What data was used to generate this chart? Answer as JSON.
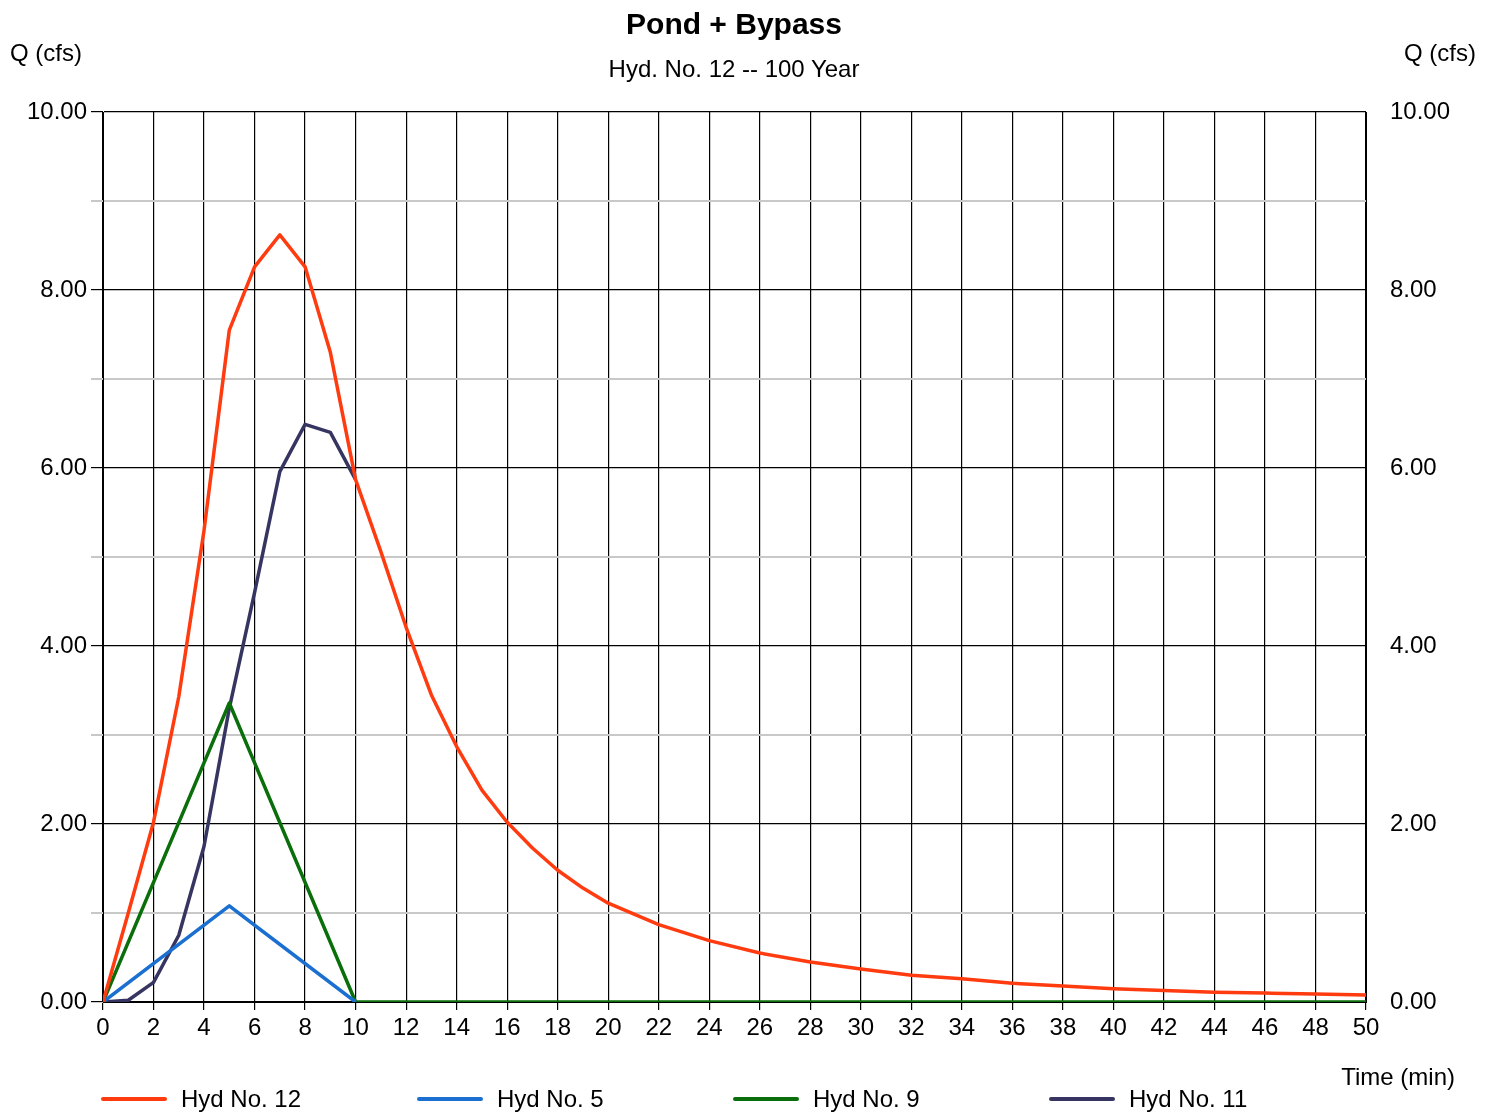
{
  "chart_data": {
    "type": "line",
    "title": "Pond + Bypass",
    "subtitle": "Hyd. No. 12 -- 100 Year",
    "xlabel": "Time (min)",
    "ylabel": "Q (cfs)",
    "y2label": "Q (cfs)",
    "xlim": [
      0,
      50
    ],
    "xticks": [
      0,
      2,
      4,
      6,
      8,
      10,
      12,
      14,
      16,
      18,
      20,
      22,
      24,
      26,
      28,
      30,
      32,
      34,
      36,
      38,
      40,
      42,
      44,
      46,
      48,
      50
    ],
    "ylim": [
      0,
      10
    ],
    "yticks": [
      {
        "value": 0,
        "label": "0.00"
      },
      {
        "value": 1,
        "label": null
      },
      {
        "value": 2,
        "label": "2.00"
      },
      {
        "value": 3,
        "label": null
      },
      {
        "value": 4,
        "label": "4.00"
      },
      {
        "value": 5,
        "label": null
      },
      {
        "value": 6,
        "label": "6.00"
      },
      {
        "value": 7,
        "label": null
      },
      {
        "value": 8,
        "label": "8.00"
      },
      {
        "value": 9,
        "label": null
      },
      {
        "value": 10,
        "label": "10.00"
      }
    ],
    "y2lim": [
      0,
      10
    ],
    "y2ticks": [
      {
        "value": 0,
        "label": "0.00"
      },
      {
        "value": 2,
        "label": "2.00"
      },
      {
        "value": 4,
        "label": "4.00"
      },
      {
        "value": 6,
        "label": "6.00"
      },
      {
        "value": 8,
        "label": "8.00"
      },
      {
        "value": 10,
        "label": "10.00"
      }
    ],
    "grid": true,
    "legend": "bottom",
    "marker": "none",
    "line_style": "solid",
    "series": [
      {
        "name": "Hyd No. 12",
        "color": "#ff3b0f",
        "x": [
          0,
          1,
          2,
          3,
          4,
          5,
          6,
          7,
          8,
          9,
          10,
          11,
          12,
          13,
          14,
          15,
          16,
          17,
          18,
          19,
          20,
          22,
          24,
          26,
          28,
          30,
          32,
          34,
          36,
          38,
          40,
          42,
          44,
          46,
          48,
          50
        ],
        "values": [
          0,
          1.0,
          2.02,
          3.43,
          5.3,
          7.55,
          8.26,
          8.62,
          8.26,
          7.3,
          5.87,
          5.06,
          4.21,
          3.45,
          2.87,
          2.38,
          2.02,
          1.73,
          1.48,
          1.28,
          1.11,
          0.87,
          0.69,
          0.55,
          0.45,
          0.37,
          0.3,
          0.26,
          0.21,
          0.18,
          0.15,
          0.13,
          0.11,
          0.1,
          0.09,
          0.08
        ]
      },
      {
        "name": "Hyd No. 5",
        "color": "#1a6fd0",
        "x": [
          0,
          5,
          10
        ],
        "values": [
          0,
          1.08,
          0
        ]
      },
      {
        "name": "Hyd No. 9",
        "color": "#0a6e0a",
        "x": [
          0,
          5,
          10,
          50
        ],
        "values": [
          0,
          3.36,
          0,
          0
        ]
      },
      {
        "name": "Hyd No. 11",
        "color": "#363561",
        "x": [
          0,
          1,
          2,
          3,
          4,
          5,
          6,
          7,
          8,
          9,
          10
        ],
        "values": [
          0,
          0.02,
          0.22,
          0.75,
          1.75,
          3.3,
          4.6,
          5.96,
          6.49,
          6.4,
          5.87
        ]
      }
    ]
  }
}
